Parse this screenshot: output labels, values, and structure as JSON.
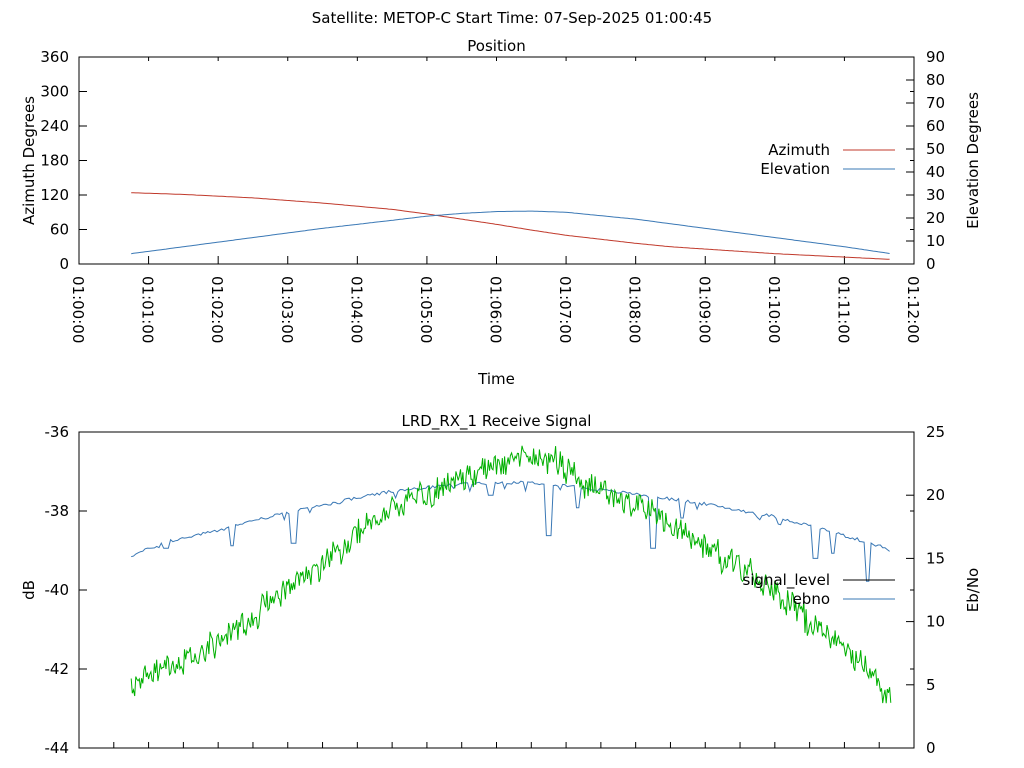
{
  "header": {
    "title": "Satellite: METOP-C    Start Time: 07-Sep-2025 01:00:45"
  },
  "chart_data": [
    {
      "type": "line",
      "title": "Position",
      "xlabel": "Time",
      "ylabel": "Azimuth Degrees",
      "y2label": "Elevation Degrees",
      "xlim": [
        "01:00:00",
        "01:12:00"
      ],
      "ylim": [
        0,
        360
      ],
      "y2lim": [
        0,
        90
      ],
      "x_ticks": [
        "01:00:00",
        "01:01:00",
        "01:02:00",
        "01:03:00",
        "01:04:00",
        "01:05:00",
        "01:06:00",
        "01:07:00",
        "01:08:00",
        "01:09:00",
        "01:10:00",
        "01:11:00",
        "01:12:00"
      ],
      "y_ticks": [
        0,
        60,
        120,
        180,
        240,
        300,
        360
      ],
      "y2_ticks": [
        0,
        10,
        20,
        30,
        40,
        50,
        60,
        70,
        80,
        90
      ],
      "legend_position": "right",
      "grid": false,
      "series": [
        {
          "name": "Azimuth",
          "axis": "left",
          "color": "#c0392b",
          "points": [
            [
              "01:00:45",
              124
            ],
            [
              "01:01:30",
              121
            ],
            [
              "01:02:30",
              115
            ],
            [
              "01:03:30",
              106
            ],
            [
              "01:04:30",
              95
            ],
            [
              "01:05:00",
              87
            ],
            [
              "01:05:30",
              78
            ],
            [
              "01:06:00",
              69
            ],
            [
              "01:06:30",
              59
            ],
            [
              "01:07:00",
              50
            ],
            [
              "01:07:30",
              43
            ],
            [
              "01:08:00",
              36
            ],
            [
              "01:08:30",
              30
            ],
            [
              "01:09:00",
              26
            ],
            [
              "01:09:30",
              22
            ],
            [
              "01:10:00",
              18
            ],
            [
              "01:10:30",
              15
            ],
            [
              "01:11:00",
              12
            ],
            [
              "01:11:40",
              8
            ]
          ]
        },
        {
          "name": "Elevation",
          "axis": "right",
          "color": "#3a78b5",
          "points": [
            [
              "01:00:45",
              4.5
            ],
            [
              "01:01:30",
              7.5
            ],
            [
              "01:02:30",
              11.5
            ],
            [
              "01:03:30",
              15.5
            ],
            [
              "01:04:30",
              19
            ],
            [
              "01:05:00",
              20.8
            ],
            [
              "01:05:30",
              22
            ],
            [
              "01:06:00",
              22.8
            ],
            [
              "01:06:30",
              23
            ],
            [
              "01:07:00",
              22.5
            ],
            [
              "01:07:30",
              21
            ],
            [
              "01:08:00",
              19.5
            ],
            [
              "01:08:30",
              17.5
            ],
            [
              "01:09:00",
              15.5
            ],
            [
              "01:09:30",
              13.5
            ],
            [
              "01:10:00",
              11.5
            ],
            [
              "01:10:30",
              9.5
            ],
            [
              "01:11:00",
              7.5
            ],
            [
              "01:11:40",
              4.5
            ]
          ]
        }
      ]
    },
    {
      "type": "line",
      "title": "LRD_RX_1 Receive Signal",
      "ylabel": "dB",
      "y2label": "Eb/No",
      "xlim": [
        "01:00:00",
        "01:12:00"
      ],
      "ylim": [
        -44,
        -36
      ],
      "y2lim": [
        0,
        25
      ],
      "y_ticks": [
        -44,
        -42,
        -40,
        -38,
        -36
      ],
      "y2_ticks": [
        0,
        5,
        10,
        15,
        20,
        25
      ],
      "legend_position": "right",
      "grid": false,
      "series": [
        {
          "name": "signal_level",
          "axis": "left",
          "color": "#000000",
          "points": []
        },
        {
          "name": "ebno",
          "axis": "right",
          "color": "#3a78b5",
          "points": [
            [
              "01:00:45",
              15.2
            ],
            [
              "01:01:15",
              16.3
            ],
            [
              "01:02:00",
              17.2
            ],
            [
              "01:02:30",
              18.0
            ],
            [
              "01:03:00",
              18.6
            ],
            [
              "01:03:30",
              19.2
            ],
            [
              "01:04:00",
              19.8
            ],
            [
              "01:04:30",
              20.3
            ],
            [
              "01:05:00",
              20.6
            ],
            [
              "01:05:30",
              20.9
            ],
            [
              "01:06:00",
              21.0
            ],
            [
              "01:06:30",
              21.0
            ],
            [
              "01:07:00",
              20.8
            ],
            [
              "01:07:30",
              20.4
            ],
            [
              "01:08:00",
              20.1
            ],
            [
              "01:08:30",
              19.7
            ],
            [
              "01:09:00",
              19.3
            ],
            [
              "01:09:30",
              18.8
            ],
            [
              "01:10:00",
              18.3
            ],
            [
              "01:10:30",
              17.6
            ],
            [
              "01:11:00",
              16.8
            ],
            [
              "01:11:30",
              16.0
            ],
            [
              "01:11:40",
              15.6
            ]
          ],
          "dips": [
            [
              "01:01:15",
              15.8
            ],
            [
              "01:02:12",
              16.0
            ],
            [
              "01:03:05",
              16.2
            ],
            [
              "01:05:55",
              20.0
            ],
            [
              "01:06:45",
              16.8
            ],
            [
              "01:07:10",
              19.0
            ],
            [
              "01:08:15",
              15.8
            ],
            [
              "01:08:40",
              18.2
            ],
            [
              "01:10:35",
              15.0
            ],
            [
              "01:10:50",
              15.4
            ],
            [
              "01:11:20",
              13.2
            ]
          ]
        },
        {
          "name": "",
          "axis": "right",
          "color": "#00b000",
          "noise": 0.9,
          "points": [
            [
              "01:00:45",
              4.5
            ],
            [
              "01:01:00",
              5.8
            ],
            [
              "01:01:30",
              6.8
            ],
            [
              "01:02:00",
              8.6
            ],
            [
              "01:02:30",
              10.3
            ],
            [
              "01:03:00",
              12.8
            ],
            [
              "01:03:30",
              14.5
            ],
            [
              "01:04:00",
              17.0
            ],
            [
              "01:04:30",
              19.0
            ],
            [
              "01:05:00",
              20.0
            ],
            [
              "01:05:30",
              21.3
            ],
            [
              "01:06:00",
              22.5
            ],
            [
              "01:06:30",
              23.2
            ],
            [
              "01:06:50",
              22.8
            ],
            [
              "01:07:15",
              20.8
            ],
            [
              "01:07:45",
              19.8
            ],
            [
              "01:08:15",
              18.6
            ],
            [
              "01:08:45",
              16.8
            ],
            [
              "01:09:15",
              15.0
            ],
            [
              "01:09:45",
              13.5
            ],
            [
              "01:10:15",
              11.2
            ],
            [
              "01:10:45",
              8.8
            ],
            [
              "01:11:15",
              6.9
            ],
            [
              "01:11:40",
              3.8
            ]
          ]
        }
      ]
    }
  ]
}
